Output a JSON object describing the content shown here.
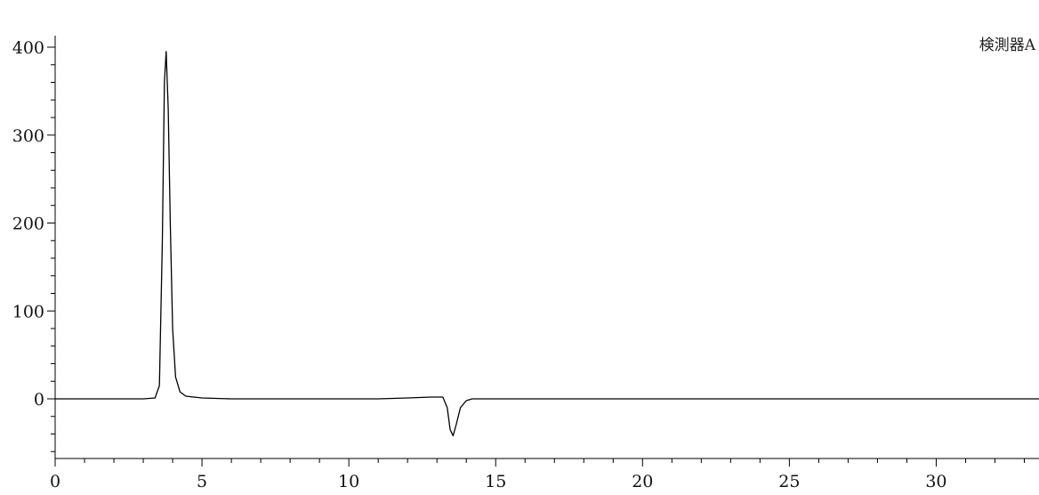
{
  "chart_data": {
    "type": "line",
    "legend_location": "top-right",
    "grid": false,
    "xlim": [
      0,
      33.5
    ],
    "ylim": [
      -70,
      410
    ],
    "x_ticks": [
      0,
      5,
      10,
      15,
      20,
      25,
      30
    ],
    "x_tick_labels": [
      "0",
      "5",
      "10",
      "15",
      "20",
      "25",
      "30"
    ],
    "y_ticks": [
      0,
      100,
      200,
      300,
      400
    ],
    "y_tick_labels": [
      "0",
      "100",
      "200",
      "300",
      "400"
    ],
    "series": [
      {
        "name": "検測器A",
        "color": "#000000",
        "x": [
          0,
          1,
          2,
          3,
          3.4,
          3.55,
          3.65,
          3.72,
          3.78,
          3.85,
          3.92,
          4.0,
          4.1,
          4.25,
          4.45,
          5.0,
          6.0,
          7.0,
          8.0,
          9.0,
          10.0,
          11.0,
          12.0,
          12.8,
          13.2,
          13.35,
          13.45,
          13.55,
          13.65,
          13.8,
          14.0,
          14.2,
          15,
          20,
          25,
          30,
          33.5
        ],
        "y": [
          0,
          0,
          0,
          0,
          1,
          15,
          180,
          360,
          395,
          330,
          200,
          80,
          25,
          8,
          3,
          1,
          0,
          0,
          0,
          0,
          0,
          0,
          1,
          2,
          2,
          -10,
          -35,
          -42,
          -30,
          -10,
          -2,
          0,
          0,
          0,
          0,
          0,
          0
        ]
      }
    ]
  }
}
